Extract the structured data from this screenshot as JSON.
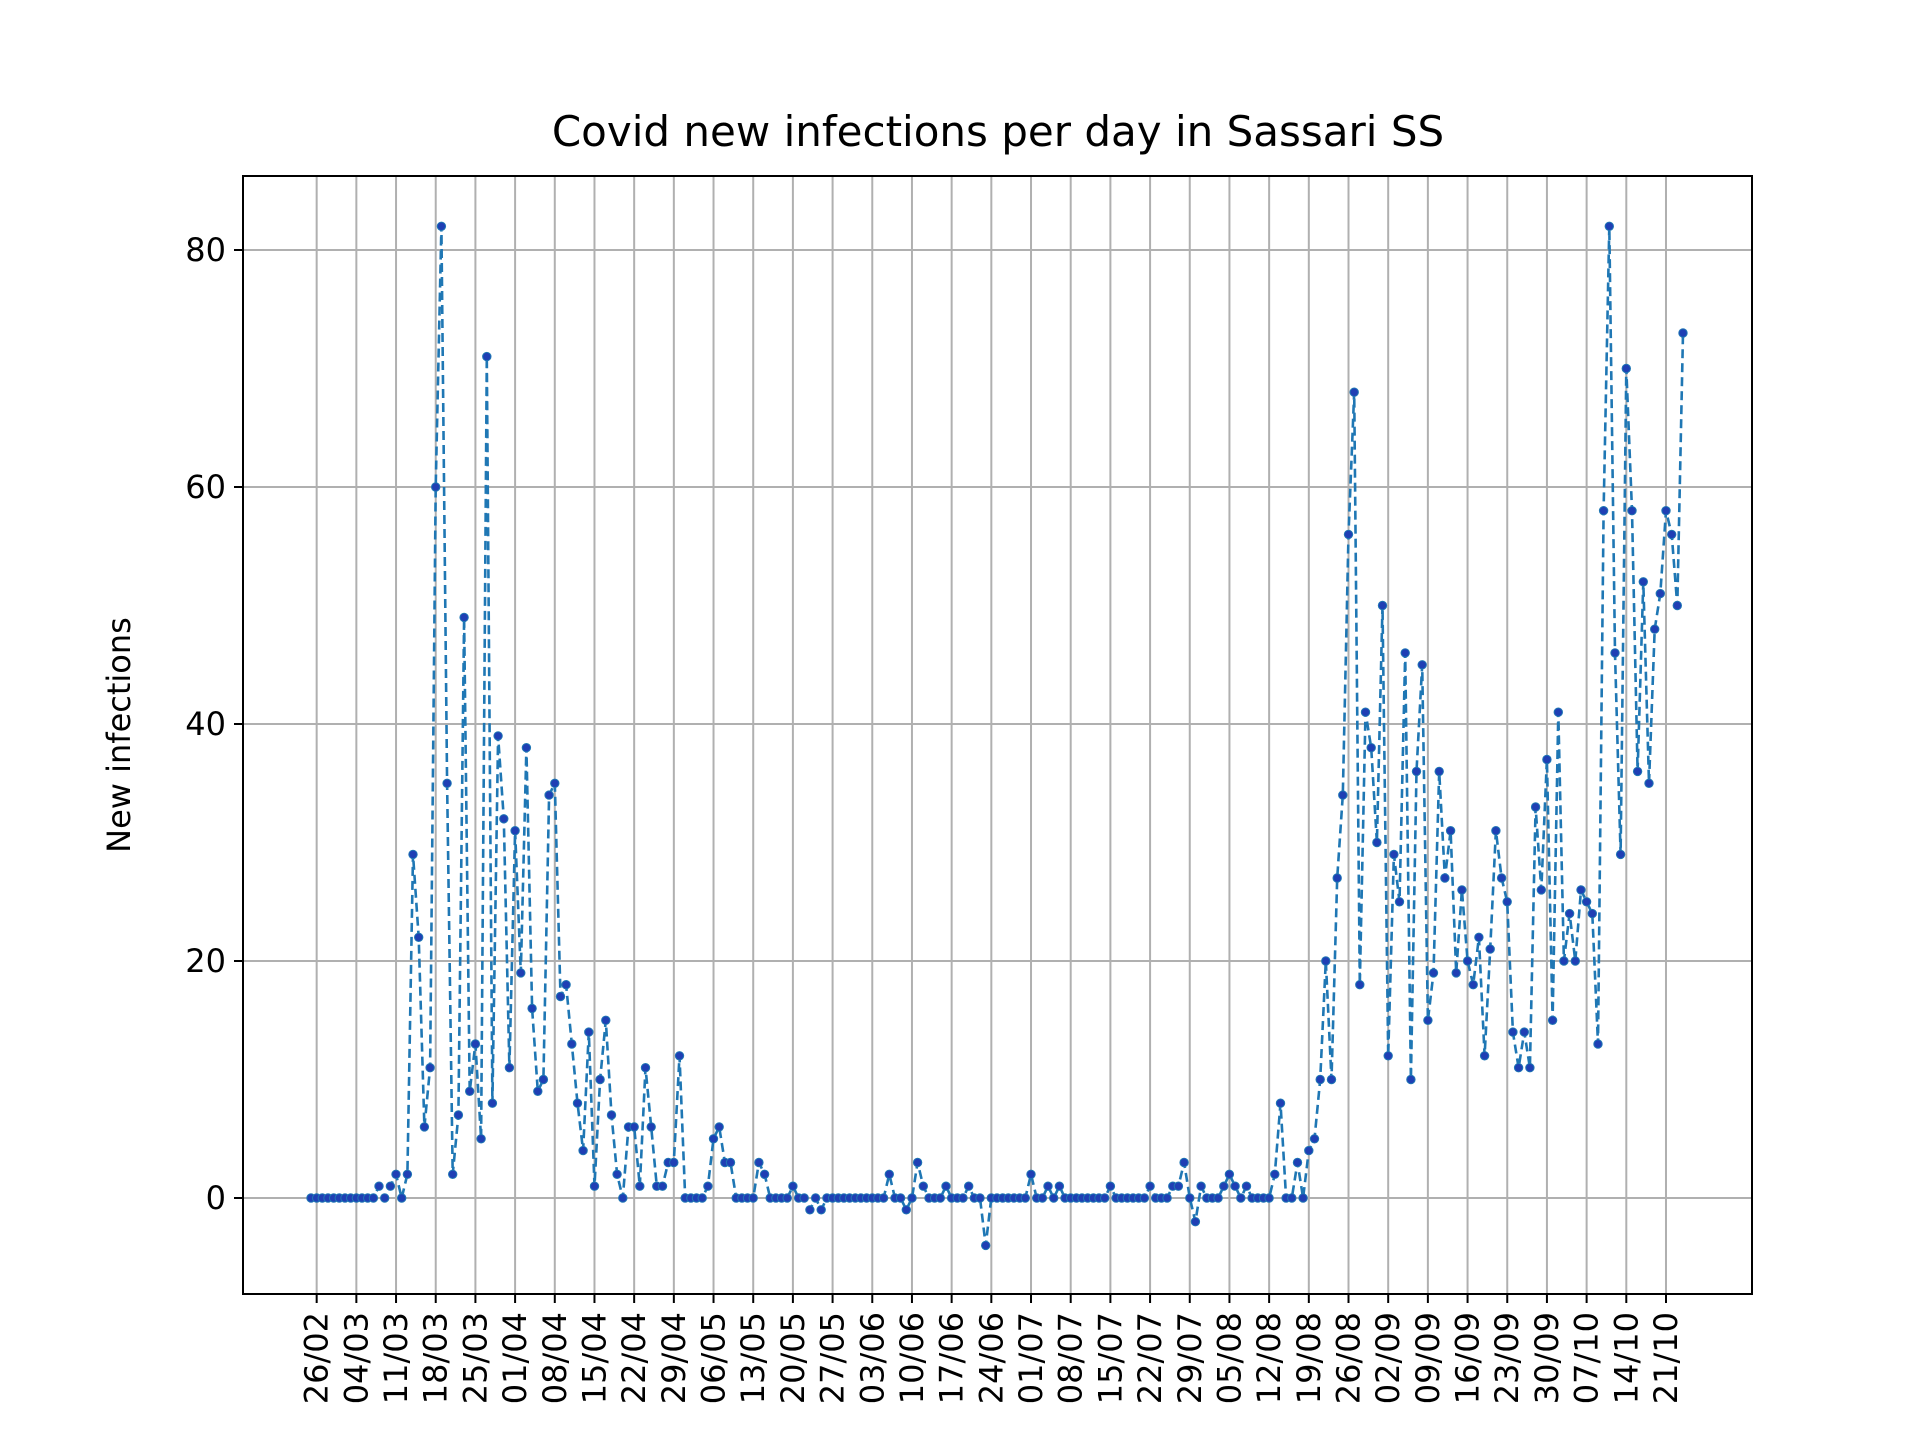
{
  "chart_data": {
    "type": "line",
    "title": "Covid new infections per day in Sassari SS",
    "xlabel": "",
    "ylabel": "New infections",
    "ylim": [
      -8.3,
      86.0
    ],
    "yticks": [
      0,
      20,
      40,
      60,
      80
    ],
    "x_ticks": [
      "26/02",
      "04/03",
      "11/03",
      "18/03",
      "25/03",
      "01/04",
      "08/04",
      "15/04",
      "22/04",
      "29/04",
      "06/05",
      "13/05",
      "20/05",
      "27/05",
      "03/06",
      "10/06",
      "17/06",
      "24/06",
      "01/07",
      "08/07",
      "15/07",
      "22/07",
      "29/07",
      "05/08",
      "12/08",
      "19/08",
      "26/08",
      "02/09",
      "09/09",
      "16/09",
      "23/09",
      "30/09",
      "07/10",
      "14/10",
      "21/10"
    ],
    "x_start": "25/02",
    "grid": true,
    "series": [
      {
        "color": "#1f77b4",
        "marker_color": "#1f3fb4",
        "values": [
          0,
          0,
          0,
          0,
          0,
          0,
          0,
          0,
          0,
          0,
          0,
          0,
          1,
          0,
          1,
          2,
          0,
          2,
          29,
          22,
          6,
          11,
          60,
          82,
          35,
          2,
          7,
          49,
          9,
          13,
          5,
          71,
          8,
          39,
          32,
          11,
          31,
          19,
          38,
          16,
          9,
          10,
          34,
          35,
          17,
          18,
          13,
          8,
          4,
          14,
          1,
          10,
          15,
          7,
          2,
          0,
          6,
          6,
          1,
          11,
          6,
          1,
          1,
          3,
          3,
          12,
          0,
          0,
          0,
          0,
          1,
          5,
          6,
          3,
          3,
          0,
          0,
          0,
          0,
          3,
          2,
          0,
          0,
          0,
          0,
          1,
          0,
          0,
          -1,
          0,
          -1,
          0,
          0,
          0,
          0,
          0,
          0,
          0,
          0,
          0,
          0,
          0,
          2,
          0,
          0,
          -1,
          0,
          3,
          1,
          0,
          0,
          0,
          1,
          0,
          0,
          0,
          1,
          0,
          0,
          -4,
          0,
          0,
          0,
          0,
          0,
          0,
          0,
          2,
          0,
          0,
          1,
          0,
          1,
          0,
          0,
          0,
          0,
          0,
          0,
          0,
          0,
          1,
          0,
          0,
          0,
          0,
          0,
          0,
          1,
          0,
          0,
          0,
          1,
          1,
          3,
          0,
          -2,
          1,
          0,
          0,
          0,
          1,
          2,
          1,
          0,
          1,
          0,
          0,
          0,
          0,
          2,
          8,
          0,
          0,
          3,
          0,
          4,
          5,
          10,
          20,
          10,
          27,
          34,
          56,
          68,
          18,
          41,
          38,
          30,
          50,
          12,
          29,
          25,
          46,
          10,
          36,
          45,
          15,
          19,
          36,
          27,
          31,
          19,
          26,
          20,
          18,
          22,
          12,
          21,
          31,
          27,
          25,
          14,
          11,
          14,
          11,
          33,
          26,
          37,
          15,
          41,
          20,
          24,
          20,
          26,
          25,
          24,
          13,
          58,
          82,
          46,
          29,
          70,
          58,
          36,
          52,
          35,
          48,
          51,
          58,
          56,
          50,
          73
        ]
      }
    ]
  }
}
